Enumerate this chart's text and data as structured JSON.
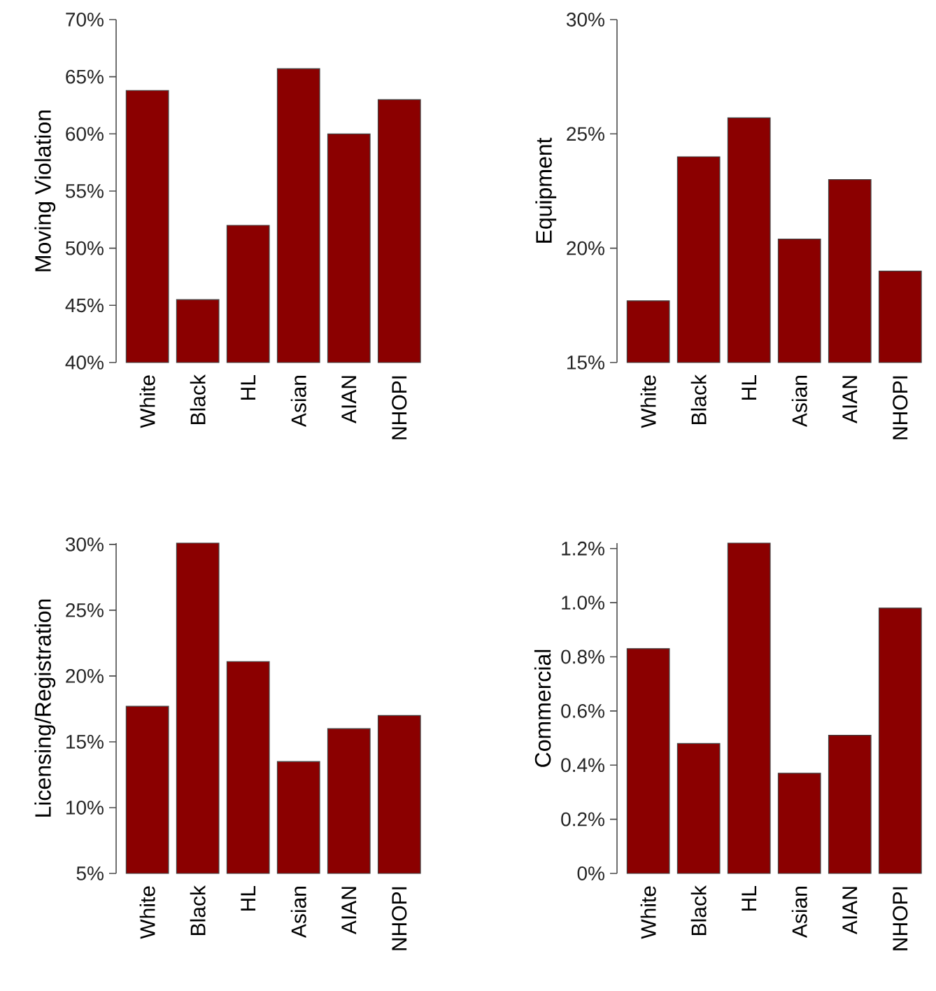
{
  "chart_data": [
    {
      "type": "bar",
      "ylabel": "Moving Violation",
      "categories": [
        "White",
        "Black",
        "HL",
        "Asian",
        "AIAN",
        "NHOPI"
      ],
      "values": [
        63.8,
        45.5,
        52.0,
        65.7,
        60.0,
        63.0
      ],
      "color": "#8b0000",
      "ylim": [
        40,
        70
      ],
      "yticks": [
        {
          "value": 40,
          "label": "40%"
        },
        {
          "value": 45,
          "label": "45%"
        },
        {
          "value": 50,
          "label": "50%"
        },
        {
          "value": 55,
          "label": "55%"
        },
        {
          "value": 60,
          "label": "60%"
        },
        {
          "value": 65,
          "label": "65%"
        },
        {
          "value": 70,
          "label": "70%"
        }
      ]
    },
    {
      "type": "bar",
      "ylabel": "Equipment",
      "categories": [
        "White",
        "Black",
        "HL",
        "Asian",
        "AIAN",
        "NHOPI"
      ],
      "values": [
        17.7,
        24.0,
        25.7,
        20.4,
        23.0,
        19.0
      ],
      "color": "#8b0000",
      "ylim": [
        15,
        30
      ],
      "yticks": [
        {
          "value": 15,
          "label": "15%"
        },
        {
          "value": 20,
          "label": "20%"
        },
        {
          "value": 25,
          "label": "25%"
        },
        {
          "value": 30,
          "label": "30%"
        }
      ]
    },
    {
      "type": "bar",
      "ylabel": "Licensing/Registration",
      "categories": [
        "White",
        "Black",
        "HL",
        "Asian",
        "AIAN",
        "NHOPI"
      ],
      "values": [
        17.7,
        30.1,
        21.1,
        13.5,
        16.0,
        17.0
      ],
      "color": "#8b0000",
      "ylim": [
        5,
        30.1
      ],
      "yticks": [
        {
          "value": 5,
          "label": "5%"
        },
        {
          "value": 10,
          "label": "10%"
        },
        {
          "value": 15,
          "label": "15%"
        },
        {
          "value": 20,
          "label": "20%"
        },
        {
          "value": 25,
          "label": "25%"
        },
        {
          "value": 30,
          "label": "30%"
        }
      ]
    },
    {
      "type": "bar",
      "ylabel": "Commercial",
      "categories": [
        "White",
        "Black",
        "HL",
        "Asian",
        "AIAN",
        "NHOPI"
      ],
      "values": [
        0.83,
        0.48,
        1.22,
        0.37,
        0.51,
        0.98
      ],
      "color": "#8b0000",
      "ylim": [
        0,
        1.22
      ],
      "yticks": [
        {
          "value": 0,
          "label": "0%"
        },
        {
          "value": 0.2,
          "label": "0.2%"
        },
        {
          "value": 0.4,
          "label": "0.4%"
        },
        {
          "value": 0.6,
          "label": "0.6%"
        },
        {
          "value": 0.8,
          "label": "0.8%"
        },
        {
          "value": 1.0,
          "label": "1.0%"
        },
        {
          "value": 1.2,
          "label": "1.2%"
        }
      ]
    }
  ]
}
